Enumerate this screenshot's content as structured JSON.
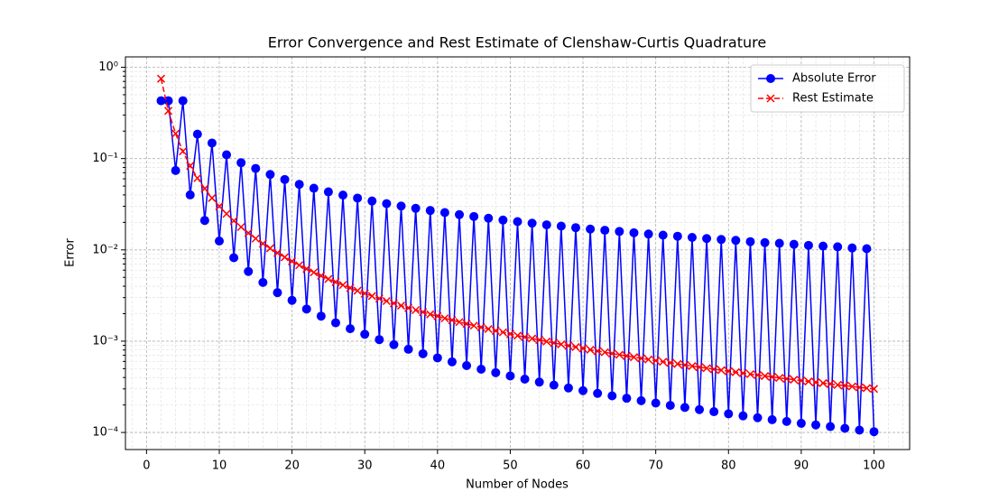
{
  "chart_data": {
    "type": "line",
    "title": "Error Convergence and Rest Estimate of Clenshaw-Curtis Quadrature",
    "xlabel": "Number of Nodes",
    "ylabel": "Error",
    "yscale": "log",
    "grid": true,
    "legend": "upper right",
    "x": [
      2,
      3,
      4,
      5,
      6,
      7,
      8,
      9,
      10,
      11,
      12,
      13,
      14,
      15,
      16,
      17,
      18,
      19,
      20,
      21,
      22,
      23,
      24,
      25,
      26,
      27,
      28,
      29,
      30,
      31,
      32,
      33,
      34,
      35,
      36,
      37,
      38,
      39,
      40,
      41,
      42,
      43,
      44,
      45,
      46,
      47,
      48,
      49,
      50,
      51,
      52,
      53,
      54,
      55,
      56,
      57,
      58,
      59,
      60,
      61,
      62,
      63,
      64,
      65,
      66,
      67,
      68,
      69,
      70,
      71,
      72,
      73,
      74,
      75,
      76,
      77,
      78,
      79,
      80,
      81,
      82,
      83,
      84,
      85,
      86,
      87,
      88,
      89,
      90,
      91,
      92,
      93,
      94,
      95,
      96,
      97,
      98,
      99,
      100
    ],
    "series": [
      {
        "name": "Absolute Error",
        "color": "#0000ff",
        "marker": "o",
        "linestyle": "solid",
        "values": [
          0.43,
          0.43,
          0.074,
          0.43,
          0.04,
          0.185,
          0.021,
          0.148,
          0.0125,
          0.11,
          0.0082,
          0.09,
          0.0058,
          0.078,
          0.0044,
          0.067,
          0.0034,
          0.059,
          0.0028,
          0.0522,
          0.00225,
          0.0473,
          0.00188,
          0.0432,
          0.00159,
          0.0398,
          0.00137,
          0.0369,
          0.00119,
          0.0343,
          0.00104,
          0.0321,
          0.000916,
          0.0302,
          0.000815,
          0.0285,
          0.000729,
          0.027,
          0.000656,
          0.0256,
          0.000594,
          0.0243,
          0.00054,
          0.0232,
          0.000493,
          0.0222,
          0.000452,
          0.0212,
          0.000416,
          0.0204,
          0.000384,
          0.0196,
          0.000356,
          0.0188,
          0.00033,
          0.0182,
          0.000307,
          0.0175,
          0.000287,
          0.0169,
          0.000268,
          0.0164,
          0.000252,
          0.0159,
          0.000237,
          0.0154,
          0.000223,
          0.0149,
          0.00021,
          0.0145,
          0.000198,
          0.0141,
          0.000188,
          0.0137,
          0.000178,
          0.0133,
          0.000169,
          0.013,
          0.00016,
          0.0127,
          0.000152,
          0.0123,
          0.000145,
          0.012,
          0.000138,
          0.0118,
          0.000132,
          0.0115,
          0.000126,
          0.0112,
          0.000121,
          0.011,
          0.000116,
          0.0108,
          0.000111,
          0.0105,
          0.000106,
          0.0103,
          0.000102
        ]
      },
      {
        "name": "Rest Estimate",
        "color": "#ff0000",
        "marker": "x",
        "linestyle": "dashed",
        "values": [
          0.75,
          0.333,
          0.1875,
          0.12,
          0.0833,
          0.0612,
          0.0469,
          0.037,
          0.03,
          0.0248,
          0.0208,
          0.0178,
          0.0153,
          0.0133,
          0.0117,
          0.0104,
          0.00926,
          0.00831,
          0.0075,
          0.0068,
          0.0062,
          0.00567,
          0.00521,
          0.0048,
          0.00444,
          0.00412,
          0.00383,
          0.00357,
          0.00333,
          0.00312,
          0.00293,
          0.00275,
          0.0026,
          0.00245,
          0.00231,
          0.00219,
          0.00208,
          0.00197,
          0.00188,
          0.00178,
          0.0017,
          0.00162,
          0.00155,
          0.00148,
          0.00142,
          0.00136,
          0.0013,
          0.00125,
          0.0012,
          0.00115,
          0.00111,
          0.00107,
          0.00103,
          0.000992,
          0.000957,
          0.000923,
          0.000892,
          0.000862,
          0.000833,
          0.000806,
          0.00078,
          0.000756,
          0.000732,
          0.00071,
          0.000689,
          0.000668,
          0.000649,
          0.00063,
          0.000612,
          0.000595,
          0.000579,
          0.000563,
          0.000548,
          0.000533,
          0.000519,
          0.000506,
          0.000493,
          0.000481,
          0.000469,
          0.000457,
          0.000446,
          0.000435,
          0.000425,
          0.000415,
          0.000406,
          0.000396,
          0.000387,
          0.000379,
          0.00037,
          0.000362,
          0.000354,
          0.000347,
          0.00034,
          0.000332,
          0.000326,
          0.000319,
          0.000312,
          0.000306,
          0.0003
        ]
      }
    ],
    "xlim": [
      -2.9,
      104.9
    ],
    "xticks": [
      0,
      10,
      20,
      30,
      40,
      50,
      60,
      70,
      80,
      90,
      100
    ],
    "xminorticks": [
      -2,
      2,
      4,
      6,
      8,
      12,
      14,
      16,
      18,
      22,
      24,
      26,
      28,
      32,
      34,
      36,
      38,
      42,
      44,
      46,
      48,
      52,
      54,
      56,
      58,
      62,
      64,
      66,
      68,
      72,
      74,
      76,
      78,
      82,
      84,
      86,
      88,
      92,
      94,
      96,
      98,
      102,
      104
    ],
    "ylim": [
      6.5e-05,
      1.3
    ],
    "yticks": [
      {
        "value": 0.0001,
        "label": "10⁻⁴"
      },
      {
        "value": 0.001,
        "label": "10⁻³"
      },
      {
        "value": 0.01,
        "label": "10⁻²"
      },
      {
        "value": 0.1,
        "label": "10⁻¹"
      },
      {
        "value": 1,
        "label": "10⁰"
      }
    ],
    "yminorticks": [
      0.0002,
      0.0003,
      0.0004,
      0.0005,
      0.0006,
      0.0007,
      0.0008,
      0.0009,
      0.002,
      0.003,
      0.004,
      0.005,
      0.006,
      0.007,
      0.008,
      0.009,
      0.02,
      0.03,
      0.04,
      0.05,
      0.06,
      0.07,
      0.08,
      0.09,
      0.2,
      0.3,
      0.4,
      0.5,
      0.6,
      0.7,
      0.8,
      0.9
    ]
  }
}
